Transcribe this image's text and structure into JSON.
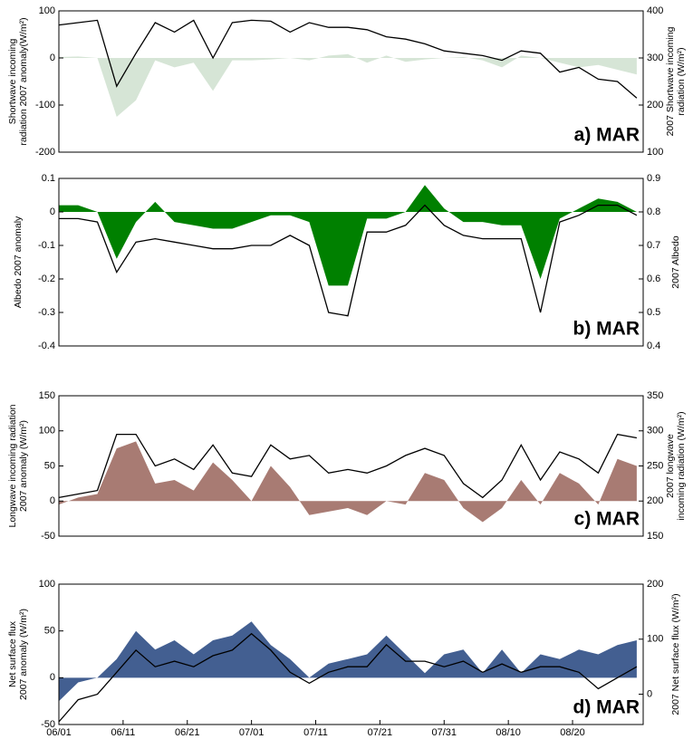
{
  "chart_data": [
    {
      "type": "area-line",
      "panel_label": "a) MAR",
      "ylabel": [
        "Shortwave incoming",
        "radiation 2007 anomaly(W/m²)"
      ],
      "y2label": [
        "2007 Shortwave incoming",
        "radiation (W/m²)"
      ],
      "x": [
        0,
        3,
        6,
        9,
        12,
        15,
        18,
        21,
        24,
        27,
        30,
        33,
        36,
        39,
        42,
        45,
        48,
        51,
        54,
        57,
        60,
        63,
        66,
        69,
        72,
        75,
        78,
        81,
        84,
        87,
        90
      ],
      "xlim": [
        0,
        91
      ],
      "ylim": [
        -200,
        100
      ],
      "yticks": [
        -200,
        -100,
        0,
        100
      ],
      "y2lim": [
        100,
        400
      ],
      "y2ticks": [
        100,
        200,
        300,
        400
      ],
      "series": [
        {
          "color": "#d6e5d6",
          "values": [
            2,
            3,
            0,
            -125,
            -90,
            -5,
            -20,
            -10,
            -70,
            -5,
            -5,
            -3,
            0,
            -5,
            5,
            8,
            -10,
            5,
            -8,
            -3,
            0,
            2,
            -5,
            -20,
            5,
            0,
            -10,
            -20,
            -15,
            -25,
            -35
          ]
        },
        {
          "color": "#000000",
          "axis": "y2",
          "values": [
            370,
            375,
            380,
            240,
            310,
            375,
            355,
            380,
            300,
            375,
            380,
            378,
            355,
            375,
            365,
            365,
            360,
            345,
            340,
            330,
            315,
            310,
            305,
            295,
            315,
            310,
            270,
            280,
            255,
            250,
            215
          ]
        }
      ]
    },
    {
      "type": "area-line",
      "panel_label": "b) MAR",
      "ylabel": [
        "Albedo 2007 anomaly"
      ],
      "y2label": [
        "2007 Albedo"
      ],
      "x": [
        0,
        3,
        6,
        9,
        12,
        15,
        18,
        21,
        24,
        27,
        30,
        33,
        36,
        39,
        42,
        45,
        48,
        51,
        54,
        57,
        60,
        63,
        66,
        69,
        72,
        75,
        78,
        81,
        84,
        87,
        90
      ],
      "xlim": [
        0,
        91
      ],
      "ylim": [
        -0.4,
        0.1
      ],
      "yticks": [
        -0.4,
        -0.3,
        -0.2,
        -0.1,
        0,
        0.1
      ],
      "y2lim": [
        0.4,
        0.9
      ],
      "y2ticks": [
        0.4,
        0.5,
        0.6,
        0.7,
        0.8,
        0.9
      ],
      "series": [
        {
          "color": "#008000",
          "values": [
            0.02,
            0.02,
            0.0,
            -0.14,
            -0.03,
            0.03,
            -0.03,
            -0.04,
            -0.05,
            -0.05,
            -0.03,
            -0.01,
            -0.01,
            -0.03,
            -0.22,
            -0.22,
            -0.02,
            -0.02,
            0.0,
            0.08,
            0.01,
            -0.03,
            -0.03,
            -0.04,
            -0.04,
            -0.2,
            -0.02,
            0.01,
            0.04,
            0.03,
            0.0
          ]
        },
        {
          "color": "#000000",
          "axis": "y2",
          "values": [
            0.78,
            0.78,
            0.77,
            0.62,
            0.71,
            0.72,
            0.71,
            0.7,
            0.69,
            0.69,
            0.7,
            0.7,
            0.73,
            0.7,
            0.5,
            0.49,
            0.74,
            0.74,
            0.76,
            0.82,
            0.76,
            0.73,
            0.72,
            0.72,
            0.72,
            0.5,
            0.77,
            0.79,
            0.82,
            0.82,
            0.79
          ]
        }
      ]
    },
    {
      "type": "area-line",
      "panel_label": "c) MAR",
      "ylabel": [
        "Longwave incoming radiation",
        "2007 anomaly (W/m²)"
      ],
      "y2label": [
        "2007 longwave",
        "incoming radiation (W/m²)"
      ],
      "x": [
        0,
        3,
        6,
        9,
        12,
        15,
        18,
        21,
        24,
        27,
        30,
        33,
        36,
        39,
        42,
        45,
        48,
        51,
        54,
        57,
        60,
        63,
        66,
        69,
        72,
        75,
        78,
        81,
        84,
        87,
        90
      ],
      "xlim": [
        0,
        91
      ],
      "ylim": [
        -50,
        150
      ],
      "yticks": [
        -50,
        0,
        50,
        100,
        150
      ],
      "y2lim": [
        150,
        350
      ],
      "y2ticks": [
        150,
        200,
        250,
        300,
        350
      ],
      "series": [
        {
          "color": "#a87b73",
          "values": [
            -5,
            5,
            10,
            75,
            85,
            25,
            30,
            15,
            55,
            30,
            0,
            50,
            20,
            -20,
            -15,
            -10,
            -20,
            0,
            -5,
            40,
            30,
            -10,
            -30,
            -10,
            30,
            -5,
            40,
            25,
            -5,
            60,
            50
          ]
        },
        {
          "color": "#000000",
          "axis": "y2",
          "values": [
            205,
            210,
            215,
            295,
            295,
            250,
            260,
            245,
            280,
            240,
            235,
            280,
            260,
            265,
            240,
            245,
            240,
            250,
            265,
            275,
            265,
            225,
            205,
            230,
            280,
            230,
            270,
            260,
            240,
            295,
            290
          ]
        }
      ]
    },
    {
      "type": "area-line",
      "panel_label": "d) MAR",
      "ylabel": [
        "Net surface flux",
        "2007 anomaly (W/m²)"
      ],
      "y2label": [
        "2007 Net surface flux (W/m²)"
      ],
      "x": [
        0,
        3,
        6,
        9,
        12,
        15,
        18,
        21,
        24,
        27,
        30,
        33,
        36,
        39,
        42,
        45,
        48,
        51,
        54,
        57,
        60,
        63,
        66,
        69,
        72,
        75,
        78,
        81,
        84,
        87,
        90
      ],
      "xlim": [
        0,
        91
      ],
      "xticks": [
        {
          "value": 0,
          "label": "06/01"
        },
        {
          "value": 10,
          "label": "06/11"
        },
        {
          "value": 20,
          "label": "06/21"
        },
        {
          "value": 30,
          "label": "07/01"
        },
        {
          "value": 40,
          "label": "07/11"
        },
        {
          "value": 50,
          "label": "07/21"
        },
        {
          "value": 60,
          "label": "07/31"
        },
        {
          "value": 70,
          "label": "08/10"
        },
        {
          "value": 80,
          "label": "08/20"
        }
      ],
      "ylim": [
        -50,
        100
      ],
      "yticks": [
        -50,
        0,
        50,
        100
      ],
      "y2lim": [
        -55,
        200
      ],
      "y2ticks": [
        0,
        100,
        200
      ],
      "series": [
        {
          "color": "#435f91",
          "values": [
            -25,
            -5,
            0,
            20,
            50,
            30,
            40,
            25,
            40,
            45,
            60,
            35,
            20,
            0,
            15,
            20,
            25,
            45,
            25,
            5,
            25,
            30,
            5,
            30,
            5,
            25,
            20,
            30,
            25,
            35,
            40
          ]
        },
        {
          "color": "#000000",
          "axis": "y2",
          "values": [
            -50,
            -10,
            0,
            40,
            80,
            50,
            60,
            50,
            70,
            80,
            110,
            80,
            40,
            20,
            40,
            50,
            50,
            90,
            60,
            60,
            50,
            60,
            40,
            55,
            40,
            50,
            50,
            40,
            10,
            30,
            50
          ]
        }
      ]
    }
  ]
}
